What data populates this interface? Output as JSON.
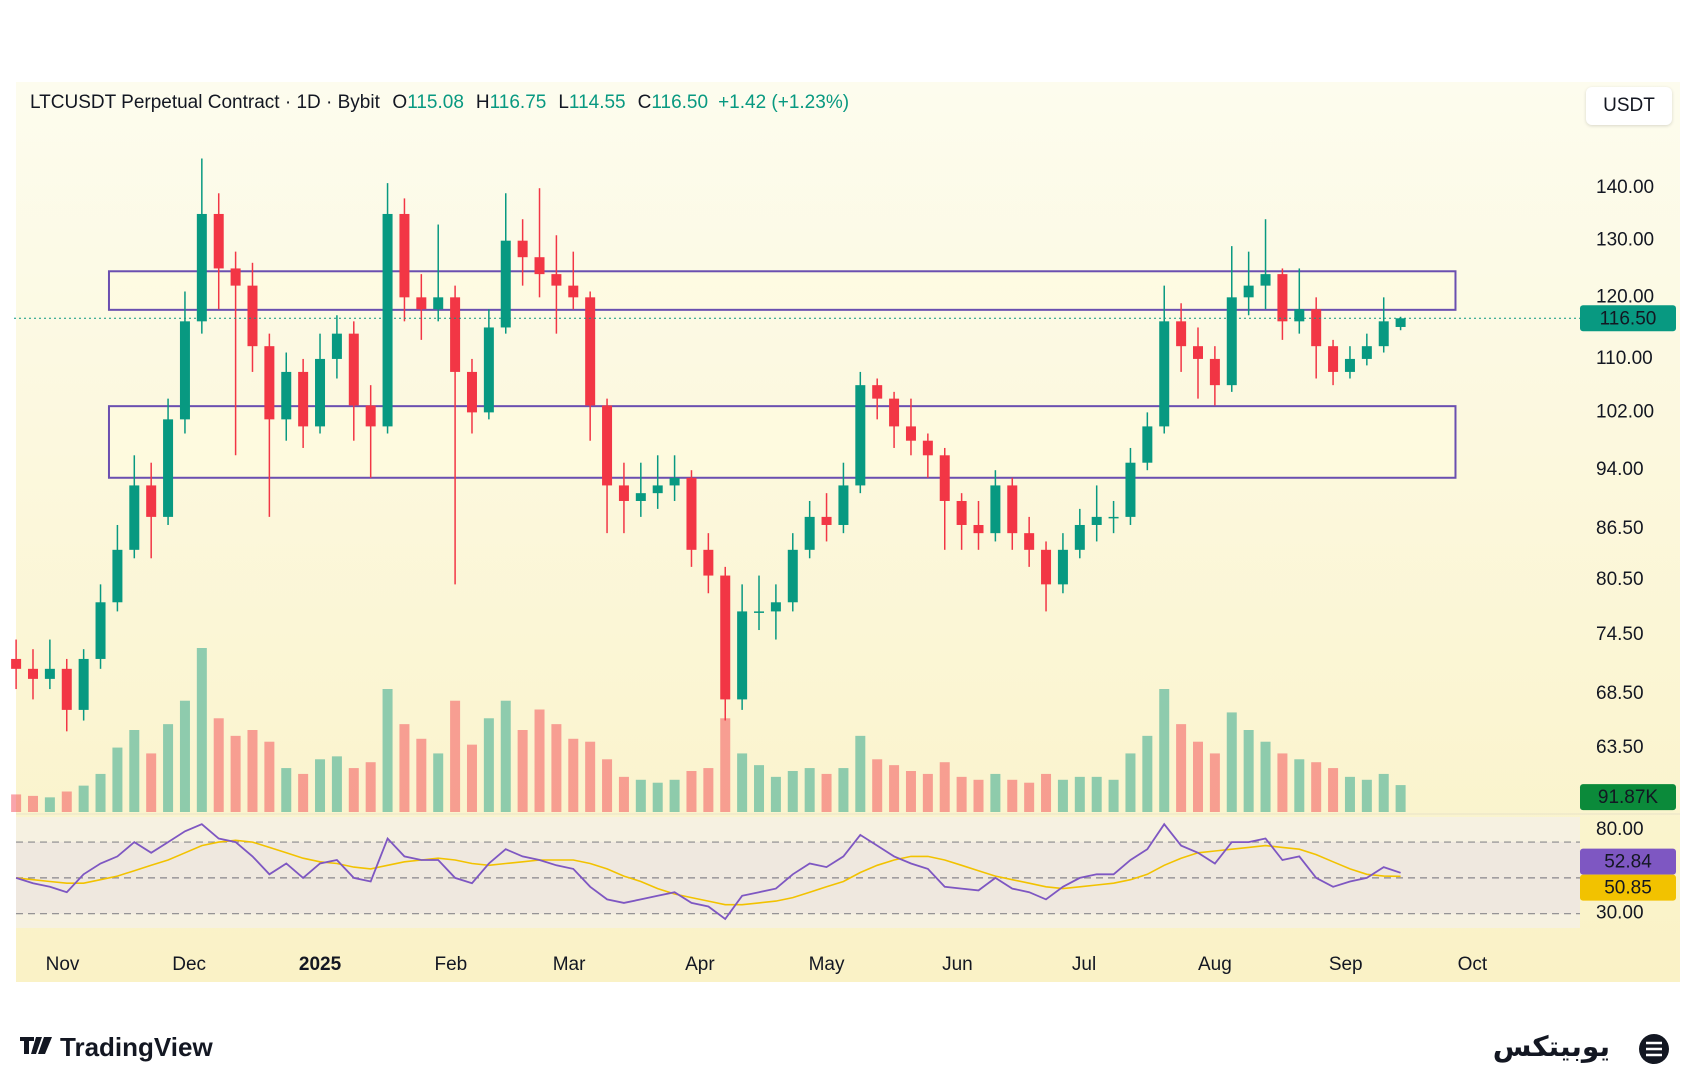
{
  "chart_data": {
    "type": "candlestick",
    "title": "LTCUSDT Perpetual Contract · 1D · Bybit",
    "ohlc_legend": [
      {
        "key": "O",
        "value": "115.08"
      },
      {
        "key": "H",
        "value": "116.75"
      },
      {
        "key": "L",
        "value": "114.55"
      },
      {
        "key": "C",
        "value": "116.50"
      }
    ],
    "change": "+1.42 (+1.23%)",
    "unit": "USDT",
    "x": [
      0,
      4,
      8,
      12,
      16,
      20,
      24,
      28,
      32,
      36,
      40,
      44,
      48,
      52,
      56,
      60,
      64,
      68,
      72,
      76,
      80,
      84,
      88,
      92,
      96,
      100,
      104,
      108,
      112,
      116,
      120,
      124,
      128,
      132,
      136,
      140,
      144,
      148,
      152,
      156,
      160,
      164,
      168,
      172,
      176,
      180,
      184,
      188,
      192,
      196,
      200,
      204,
      208,
      212,
      216,
      220,
      224,
      228,
      232,
      236,
      240,
      244,
      248,
      252,
      256,
      260,
      264,
      268,
      272,
      276,
      280,
      284,
      288,
      292,
      296,
      300,
      304,
      308,
      312,
      316,
      320,
      324,
      328
    ],
    "xlim": [
      -0.5,
      370.5
    ],
    "xticks": [
      {
        "value": 11,
        "label": "Nov"
      },
      {
        "value": 41,
        "label": "Dec"
      },
      {
        "value": 72,
        "label": "2025"
      },
      {
        "value": 103,
        "label": "Feb"
      },
      {
        "value": 131,
        "label": "Mar"
      },
      {
        "value": 162,
        "label": "Apr"
      },
      {
        "value": 192,
        "label": "May"
      },
      {
        "value": 223,
        "label": "Jun"
      },
      {
        "value": 253,
        "label": "Jul"
      },
      {
        "value": 284,
        "label": "Aug"
      },
      {
        "value": 315,
        "label": "Sep"
      },
      {
        "value": 345,
        "label": "Oct"
      }
    ],
    "ohlc": [
      [
        72,
        74,
        69,
        71
      ],
      [
        71,
        73,
        68,
        70
      ],
      [
        70,
        74,
        69,
        71
      ],
      [
        71,
        72,
        65,
        67
      ],
      [
        67,
        73,
        66,
        72
      ],
      [
        72,
        80,
        71,
        78
      ],
      [
        78,
        87,
        77,
        84
      ],
      [
        84,
        96,
        83,
        92
      ],
      [
        92,
        95,
        83,
        88
      ],
      [
        88,
        104,
        87,
        101
      ],
      [
        101,
        121,
        99,
        116
      ],
      [
        116,
        146,
        114,
        135
      ],
      [
        135,
        139,
        118,
        125
      ],
      [
        125,
        128,
        96,
        122
      ],
      [
        122,
        126,
        108,
        112
      ],
      [
        112,
        114,
        88,
        101
      ],
      [
        101,
        111,
        98,
        108
      ],
      [
        108,
        110,
        97,
        100
      ],
      [
        100,
        114,
        99,
        110
      ],
      [
        110,
        117,
        107,
        114
      ],
      [
        114,
        116,
        98,
        103
      ],
      [
        103,
        106,
        93,
        100
      ],
      [
        100,
        141,
        99,
        135
      ],
      [
        135,
        138,
        116,
        120
      ],
      [
        120,
        124,
        113,
        118
      ],
      [
        118,
        133,
        116,
        120
      ],
      [
        120,
        122,
        80,
        108
      ],
      [
        108,
        110,
        99,
        102
      ],
      [
        102,
        118,
        101,
        115
      ],
      [
        115,
        139,
        114,
        130
      ],
      [
        130,
        134,
        122,
        127
      ],
      [
        127,
        140,
        120,
        124
      ],
      [
        124,
        131,
        114,
        122
      ],
      [
        122,
        128,
        118,
        120
      ],
      [
        120,
        121,
        98,
        103
      ],
      [
        103,
        104,
        86,
        92
      ],
      [
        92,
        95,
        86,
        90
      ],
      [
        90,
        95,
        88,
        91
      ],
      [
        91,
        96,
        89,
        92
      ],
      [
        92,
        96,
        90,
        93
      ],
      [
        93,
        94,
        82,
        84
      ],
      [
        84,
        86,
        79,
        81
      ],
      [
        81,
        82,
        66,
        68
      ],
      [
        68,
        80,
        67,
        77
      ],
      [
        77,
        81,
        75,
        77
      ],
      [
        77,
        80,
        74,
        78
      ],
      [
        78,
        86,
        77,
        84
      ],
      [
        84,
        90,
        83,
        88
      ],
      [
        88,
        91,
        85,
        87
      ],
      [
        87,
        95,
        86,
        92
      ],
      [
        92,
        108,
        91,
        106
      ],
      [
        106,
        107,
        101,
        104
      ],
      [
        104,
        105,
        97,
        100
      ],
      [
        100,
        104,
        96,
        98
      ],
      [
        98,
        99,
        93,
        96
      ],
      [
        96,
        97,
        84,
        90
      ],
      [
        90,
        91,
        84,
        87
      ],
      [
        87,
        90,
        84,
        86
      ],
      [
        86,
        94,
        85,
        92
      ],
      [
        92,
        93,
        84,
        86
      ],
      [
        86,
        88,
        82,
        84
      ],
      [
        84,
        85,
        77,
        80
      ],
      [
        80,
        86,
        79,
        84
      ],
      [
        84,
        89,
        83,
        87
      ],
      [
        87,
        92,
        85,
        88
      ],
      [
        88,
        90,
        86,
        88
      ],
      [
        88,
        97,
        87,
        95
      ],
      [
        95,
        102,
        94,
        100
      ],
      [
        100,
        122,
        99,
        116
      ],
      [
        116,
        119,
        108,
        112
      ],
      [
        112,
        115,
        104,
        110
      ],
      [
        110,
        112,
        103,
        106
      ],
      [
        106,
        129,
        105,
        120
      ],
      [
        120,
        128,
        117,
        122
      ],
      [
        122,
        134,
        118,
        124
      ],
      [
        124,
        125,
        113,
        116
      ],
      [
        116,
        125,
        114,
        118
      ],
      [
        118,
        120,
        107,
        112
      ],
      [
        112,
        113,
        106,
        108
      ],
      [
        108,
        112,
        107,
        110
      ],
      [
        110,
        114,
        109,
        112
      ],
      [
        112,
        120,
        111,
        116
      ],
      [
        115.08,
        116.75,
        114.55,
        116.5
      ]
    ],
    "up_color": "#089981",
    "down_color": "#f23645",
    "ylim": [
      58,
      152
    ],
    "log_scale": true,
    "yticks": [
      {
        "value": 140,
        "label": "140.00"
      },
      {
        "value": 130,
        "label": "130.00"
      },
      {
        "value": 120,
        "label": "120.00"
      },
      {
        "value": 110,
        "label": "110.00"
      },
      {
        "value": 102,
        "label": "102.00"
      },
      {
        "value": 94,
        "label": "94.00"
      },
      {
        "value": 86.5,
        "label": "86.50"
      },
      {
        "value": 80.5,
        "label": "80.50"
      },
      {
        "value": 74.5,
        "label": "74.50"
      },
      {
        "value": 68.5,
        "label": "68.50"
      },
      {
        "value": 63.5,
        "label": "63.50"
      }
    ],
    "last_price": {
      "value": 116.5,
      "label": "116.50"
    },
    "zones": [
      {
        "x": [
          22,
          341
        ],
        "y": [
          117.9,
          124.5
        ]
      },
      {
        "x": [
          22,
          341
        ],
        "y": [
          93,
          102.9
        ]
      }
    ],
    "zone_color": "#6a4fb0",
    "volume": {
      "values": [
        60,
        55,
        50,
        70,
        90,
        130,
        220,
        280,
        200,
        300,
        380,
        560,
        320,
        260,
        280,
        240,
        150,
        130,
        180,
        190,
        150,
        170,
        420,
        300,
        250,
        200,
        380,
        230,
        320,
        380,
        280,
        350,
        300,
        250,
        240,
        180,
        120,
        110,
        100,
        110,
        140,
        150,
        320,
        200,
        160,
        120,
        140,
        150,
        130,
        150,
        260,
        180,
        160,
        140,
        130,
        170,
        120,
        110,
        130,
        110,
        100,
        130,
        110,
        120,
        120,
        110,
        200,
        260,
        420,
        300,
        240,
        200,
        340,
        280,
        240,
        200,
        180,
        170,
        150,
        120,
        110,
        130,
        91.87
      ],
      "value_label": "91.87K",
      "ylim": [
        0,
        700
      ]
    },
    "rsi": {
      "values": [
        50,
        47,
        45,
        42,
        52,
        58,
        62,
        70,
        64,
        70,
        76,
        80,
        72,
        70,
        62,
        52,
        58,
        50,
        58,
        60,
        50,
        48,
        72,
        62,
        60,
        60,
        50,
        47,
        58,
        66,
        62,
        60,
        57,
        55,
        45,
        38,
        36,
        38,
        40,
        42,
        36,
        34,
        27,
        40,
        42,
        44,
        52,
        58,
        56,
        62,
        74,
        68,
        62,
        58,
        55,
        45,
        44,
        43,
        50,
        44,
        42,
        38,
        45,
        50,
        52,
        52,
        60,
        66,
        80,
        68,
        64,
        58,
        70,
        70,
        72,
        60,
        62,
        50,
        45,
        48,
        50,
        56,
        52.84
      ],
      "color": "#7e57c2"
    },
    "rsi_ma": {
      "values": [
        50,
        49,
        48,
        47,
        47,
        49,
        51,
        54,
        57,
        60,
        64,
        68,
        70,
        71,
        70,
        67,
        64,
        61,
        59,
        58,
        56,
        55,
        57,
        59,
        60,
        61,
        60,
        58,
        57,
        58,
        59,
        60,
        60,
        60,
        58,
        55,
        51,
        48,
        44,
        41,
        39,
        37,
        35,
        35,
        36,
        37,
        39,
        42,
        45,
        48,
        53,
        57,
        60,
        62,
        62,
        60,
        57,
        54,
        51,
        49,
        47,
        45,
        44,
        45,
        46,
        47,
        49,
        52,
        57,
        61,
        64,
        65,
        66,
        67,
        68,
        67,
        66,
        63,
        59,
        55,
        52,
        51,
        50.85
      ],
      "color": "#f2c200"
    },
    "rsi_ylim": [
      22,
      84
    ],
    "rsi_levels": [
      70,
      50,
      30
    ],
    "rsi_yticks": [
      {
        "value": 80,
        "label": "80.00"
      },
      {
        "value": 30,
        "label": "30.00"
      }
    ]
  },
  "footer": {
    "left": "TradingView",
    "right": "یوبیتکس"
  }
}
